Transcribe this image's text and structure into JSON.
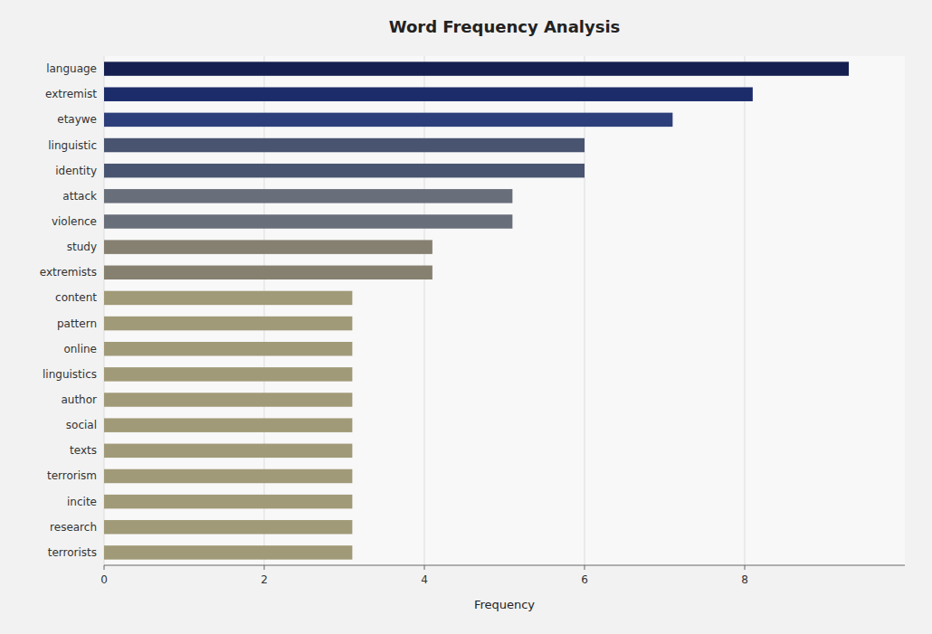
{
  "chart_data": {
    "type": "bar",
    "orientation": "horizontal",
    "title": "Word Frequency Analysis",
    "xlabel": "Frequency",
    "categories": [
      "language",
      "extremist",
      "etaywe",
      "linguistic",
      "identity",
      "attack",
      "violence",
      "study",
      "extremists",
      "content",
      "pattern",
      "online",
      "linguistics",
      "author",
      "social",
      "texts",
      "terrorism",
      "incite",
      "research",
      "terrorists"
    ],
    "values": [
      9.3,
      8.1,
      7.1,
      6.0,
      6.0,
      5.1,
      5.1,
      4.1,
      4.1,
      3.1,
      3.1,
      3.1,
      3.1,
      3.1,
      3.1,
      3.1,
      3.1,
      3.1,
      3.1,
      3.1
    ],
    "colors": [
      "#152050",
      "#1c2c6b",
      "#2d3f7a",
      "#495470",
      "#495470",
      "#686e7a",
      "#686e7a",
      "#868070",
      "#868070",
      "#a09a78",
      "#a09a78",
      "#a09a78",
      "#a09a78",
      "#a09a78",
      "#a09a78",
      "#a09a78",
      "#a09a78",
      "#a09a78",
      "#a09a78",
      "#a09a78"
    ],
    "xlim": [
      0,
      10
    ],
    "xticks": [
      0,
      2,
      4,
      6,
      8
    ],
    "grid": true
  }
}
